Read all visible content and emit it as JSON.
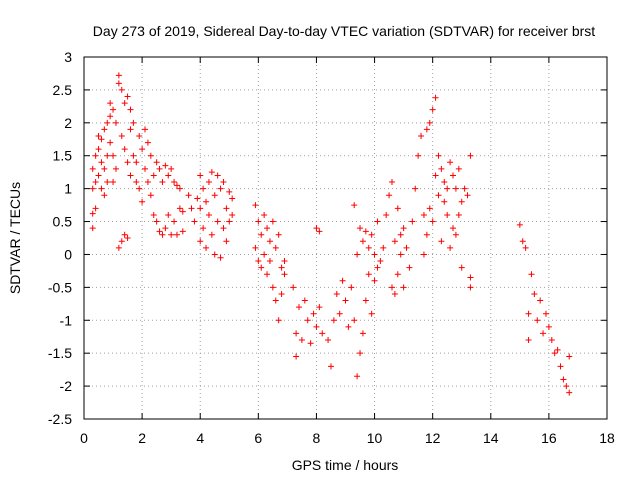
{
  "chart_data": {
    "type": "scatter",
    "title": "Day 273 of 2019, Sidereal Day-to-day VTEC variation (SDTVAR) for receiver brst",
    "xlabel": "GPS time / hours",
    "ylabel": "SDTVAR / TECUs",
    "xlim": [
      0,
      18
    ],
    "ylim": [
      -2.5,
      3
    ],
    "xticks": [
      "0",
      "2",
      "4",
      "6",
      "8",
      "10",
      "12",
      "14",
      "16",
      "18"
    ],
    "yticks": [
      "-2.5",
      "-2",
      "-1.5",
      "-1",
      "-0.5",
      "0",
      "0.5",
      "1",
      "1.5",
      "2",
      "2.5",
      "3"
    ],
    "grid": true,
    "marker": "+",
    "color": "#ff0000",
    "series": [
      {
        "name": "SDTVAR",
        "points": [
          [
            0.3,
            0.4
          ],
          [
            0.3,
            0.62
          ],
          [
            0.3,
            1.0
          ],
          [
            0.3,
            1.3
          ],
          [
            0.4,
            0.7
          ],
          [
            0.4,
            1.1
          ],
          [
            0.4,
            1.5
          ],
          [
            0.5,
            1.2
          ],
          [
            0.5,
            1.6
          ],
          [
            0.5,
            1.8
          ],
          [
            0.6,
            1.0
          ],
          [
            0.6,
            1.4
          ],
          [
            0.6,
            1.75
          ],
          [
            0.7,
            0.9
          ],
          [
            0.7,
            1.3
          ],
          [
            0.7,
            1.9
          ],
          [
            0.8,
            2.0
          ],
          [
            0.8,
            1.5
          ],
          [
            0.8,
            1.1
          ],
          [
            0.9,
            2.3
          ],
          [
            0.9,
            2.1
          ],
          [
            0.9,
            1.7
          ],
          [
            1.0,
            2.2
          ],
          [
            1.0,
            1.5
          ],
          [
            1.0,
            1.1
          ],
          [
            1.1,
            2.0
          ],
          [
            1.1,
            1.3
          ],
          [
            1.2,
            2.72
          ],
          [
            1.2,
            2.6
          ],
          [
            1.2,
            0.1
          ],
          [
            1.3,
            2.5
          ],
          [
            1.3,
            1.8
          ],
          [
            1.3,
            0.2
          ],
          [
            1.4,
            2.3
          ],
          [
            1.4,
            1.6
          ],
          [
            1.4,
            0.3
          ],
          [
            1.5,
            2.4
          ],
          [
            1.5,
            1.4
          ],
          [
            1.5,
            0.25
          ],
          [
            1.6,
            2.2
          ],
          [
            1.6,
            1.9
          ],
          [
            1.6,
            1.2
          ],
          [
            1.7,
            2.0
          ],
          [
            1.7,
            1.5
          ],
          [
            1.8,
            1.4
          ],
          [
            1.8,
            1.1
          ],
          [
            1.9,
            1.8
          ],
          [
            1.9,
            1.0
          ],
          [
            2.0,
            1.6
          ],
          [
            2.0,
            0.8
          ],
          [
            2.1,
            1.9
          ],
          [
            2.1,
            1.3
          ],
          [
            2.2,
            1.7
          ],
          [
            2.2,
            1.1
          ],
          [
            2.3,
            1.5
          ],
          [
            2.3,
            0.9
          ],
          [
            2.4,
            1.2
          ],
          [
            2.4,
            0.6
          ],
          [
            2.5,
            1.4
          ],
          [
            2.5,
            0.5
          ],
          [
            2.6,
            1.3
          ],
          [
            2.6,
            0.35
          ],
          [
            2.7,
            1.1
          ],
          [
            2.7,
            0.3
          ],
          [
            2.8,
            1.35
          ],
          [
            2.8,
            0.4
          ],
          [
            2.9,
            1.2
          ],
          [
            2.9,
            0.6
          ],
          [
            3.0,
            1.3
          ],
          [
            3.0,
            0.3
          ],
          [
            3.1,
            1.1
          ],
          [
            3.1,
            0.5
          ],
          [
            3.2,
            1.05
          ],
          [
            3.2,
            0.3
          ],
          [
            3.3,
            1.0
          ],
          [
            3.3,
            0.7
          ],
          [
            3.4,
            0.65
          ],
          [
            3.4,
            0.35
          ],
          [
            3.6,
            0.9
          ],
          [
            3.7,
            0.7
          ],
          [
            3.8,
            0.5
          ],
          [
            3.9,
            0.85
          ],
          [
            4.0,
            1.2
          ],
          [
            4.0,
            0.7
          ],
          [
            4.0,
            0.2
          ],
          [
            4.1,
            1.0
          ],
          [
            4.1,
            0.4
          ],
          [
            4.2,
            0.8
          ],
          [
            4.2,
            0.1
          ],
          [
            4.3,
            1.1
          ],
          [
            4.3,
            0.6
          ],
          [
            4.4,
            1.25
          ],
          [
            4.4,
            0.3
          ],
          [
            4.5,
            0.9
          ],
          [
            4.5,
            0.0
          ],
          [
            4.6,
            1.2
          ],
          [
            4.6,
            0.5
          ],
          [
            4.7,
            1.0
          ],
          [
            4.7,
            -0.05
          ],
          [
            4.8,
            0.4
          ],
          [
            4.8,
            1.1
          ],
          [
            4.9,
            0.7
          ],
          [
            4.9,
            0.2
          ],
          [
            5.0,
            0.95
          ],
          [
            5.0,
            0.5
          ],
          [
            5.1,
            0.85
          ],
          [
            5.1,
            0.6
          ],
          [
            5.9,
            0.75
          ],
          [
            5.9,
            0.1
          ],
          [
            6.0,
            0.5
          ],
          [
            6.0,
            -0.1
          ],
          [
            6.1,
            0.3
          ],
          [
            6.1,
            -0.2
          ],
          [
            6.2,
            0.6
          ],
          [
            6.2,
            0.0
          ],
          [
            6.3,
            0.4
          ],
          [
            6.3,
            -0.3
          ],
          [
            6.4,
            0.2
          ],
          [
            6.4,
            -0.1
          ],
          [
            6.5,
            0.5
          ],
          [
            6.5,
            -0.5
          ],
          [
            6.6,
            0.1
          ],
          [
            6.6,
            -0.7
          ],
          [
            6.7,
            0.3
          ],
          [
            6.7,
            -1.0
          ],
          [
            6.8,
            -0.2
          ],
          [
            6.8,
            -0.6
          ],
          [
            6.9,
            -0.3
          ],
          [
            6.9,
            -0.1
          ],
          [
            7.2,
            -0.5
          ],
          [
            7.3,
            -1.2
          ],
          [
            7.3,
            -1.55
          ],
          [
            7.4,
            -0.8
          ],
          [
            7.5,
            -1.3
          ],
          [
            7.6,
            -0.7
          ],
          [
            7.7,
            -1.0
          ],
          [
            7.8,
            -1.35
          ],
          [
            7.9,
            -0.9
          ],
          [
            8.0,
            -1.1
          ],
          [
            8.0,
            0.4
          ],
          [
            8.1,
            -0.8
          ],
          [
            8.1,
            0.35
          ],
          [
            8.2,
            -1.2
          ],
          [
            8.4,
            -1.3
          ],
          [
            8.5,
            -1.7
          ],
          [
            8.6,
            -1.0
          ],
          [
            8.7,
            -0.6
          ],
          [
            8.8,
            -0.9
          ],
          [
            8.9,
            -0.4
          ],
          [
            9.0,
            -0.7
          ],
          [
            9.1,
            -1.1
          ],
          [
            9.2,
            -0.5
          ],
          [
            9.3,
            -1.0
          ],
          [
            9.3,
            0.75
          ],
          [
            9.4,
            -1.85
          ],
          [
            9.4,
            0.0
          ],
          [
            9.5,
            -1.5
          ],
          [
            9.5,
            0.4
          ],
          [
            9.6,
            -1.2
          ],
          [
            9.6,
            0.2
          ],
          [
            9.7,
            -0.7
          ],
          [
            9.7,
            0.35
          ],
          [
            9.8,
            -0.3
          ],
          [
            9.8,
            0.1
          ],
          [
            9.9,
            -0.9
          ],
          [
            9.9,
            0.3
          ],
          [
            10.0,
            -0.4
          ],
          [
            10.0,
            0.0
          ],
          [
            10.1,
            -0.2
          ],
          [
            10.1,
            0.5
          ],
          [
            10.2,
            -0.1
          ],
          [
            10.3,
            0.1
          ],
          [
            10.4,
            0.6
          ],
          [
            10.5,
            0.9
          ],
          [
            10.6,
            1.1
          ],
          [
            10.6,
            -0.5
          ],
          [
            10.7,
            0.2
          ],
          [
            10.7,
            -0.6
          ],
          [
            10.8,
            0.7
          ],
          [
            10.8,
            -0.3
          ],
          [
            10.9,
            0.0
          ],
          [
            10.9,
            0.3
          ],
          [
            11.0,
            -0.5
          ],
          [
            11.0,
            0.4
          ],
          [
            11.1,
            0.1
          ],
          [
            11.2,
            -0.2
          ],
          [
            11.3,
            0.5
          ],
          [
            11.4,
            1.0
          ],
          [
            11.5,
            1.5
          ],
          [
            11.6,
            1.8
          ],
          [
            11.7,
            0.6
          ],
          [
            11.7,
            0.0
          ],
          [
            11.8,
            1.9
          ],
          [
            11.8,
            0.3
          ],
          [
            11.9,
            2.0
          ],
          [
            11.9,
            0.7
          ],
          [
            12.0,
            2.2
          ],
          [
            12.0,
            0.5
          ],
          [
            12.1,
            2.38
          ],
          [
            12.1,
            1.2
          ],
          [
            12.2,
            1.5
          ],
          [
            12.2,
            0.9
          ],
          [
            12.3,
            1.3
          ],
          [
            12.3,
            0.2
          ],
          [
            12.4,
            0.8
          ],
          [
            12.4,
            1.1
          ],
          [
            12.5,
            1.0
          ],
          [
            12.5,
            0.6
          ],
          [
            12.6,
            1.4
          ],
          [
            12.6,
            0.1
          ],
          [
            12.7,
            1.2
          ],
          [
            12.7,
            0.4
          ],
          [
            12.8,
            1.0
          ],
          [
            12.8,
            0.3
          ],
          [
            12.9,
            0.6
          ],
          [
            12.9,
            1.3
          ],
          [
            13.0,
            0.8
          ],
          [
            13.0,
            -0.2
          ],
          [
            13.1,
            1.0
          ],
          [
            13.2,
            0.9
          ],
          [
            13.3,
            -0.35
          ],
          [
            13.3,
            -0.5
          ],
          [
            13.3,
            1.5
          ],
          [
            15.0,
            0.45
          ],
          [
            15.1,
            0.2
          ],
          [
            15.2,
            0.1
          ],
          [
            15.3,
            -0.9
          ],
          [
            15.3,
            -1.3
          ],
          [
            15.4,
            -0.3
          ],
          [
            15.5,
            -0.6
          ],
          [
            15.6,
            -1.0
          ],
          [
            15.7,
            -0.7
          ],
          [
            15.8,
            -1.2
          ],
          [
            15.9,
            -0.9
          ],
          [
            16.0,
            -1.1
          ],
          [
            16.1,
            -1.3
          ],
          [
            16.2,
            -1.5
          ],
          [
            16.3,
            -1.45
          ],
          [
            16.4,
            -1.7
          ],
          [
            16.5,
            -1.9
          ],
          [
            16.6,
            -2.0
          ],
          [
            16.7,
            -2.1
          ],
          [
            16.7,
            -1.55
          ]
        ]
      }
    ]
  }
}
